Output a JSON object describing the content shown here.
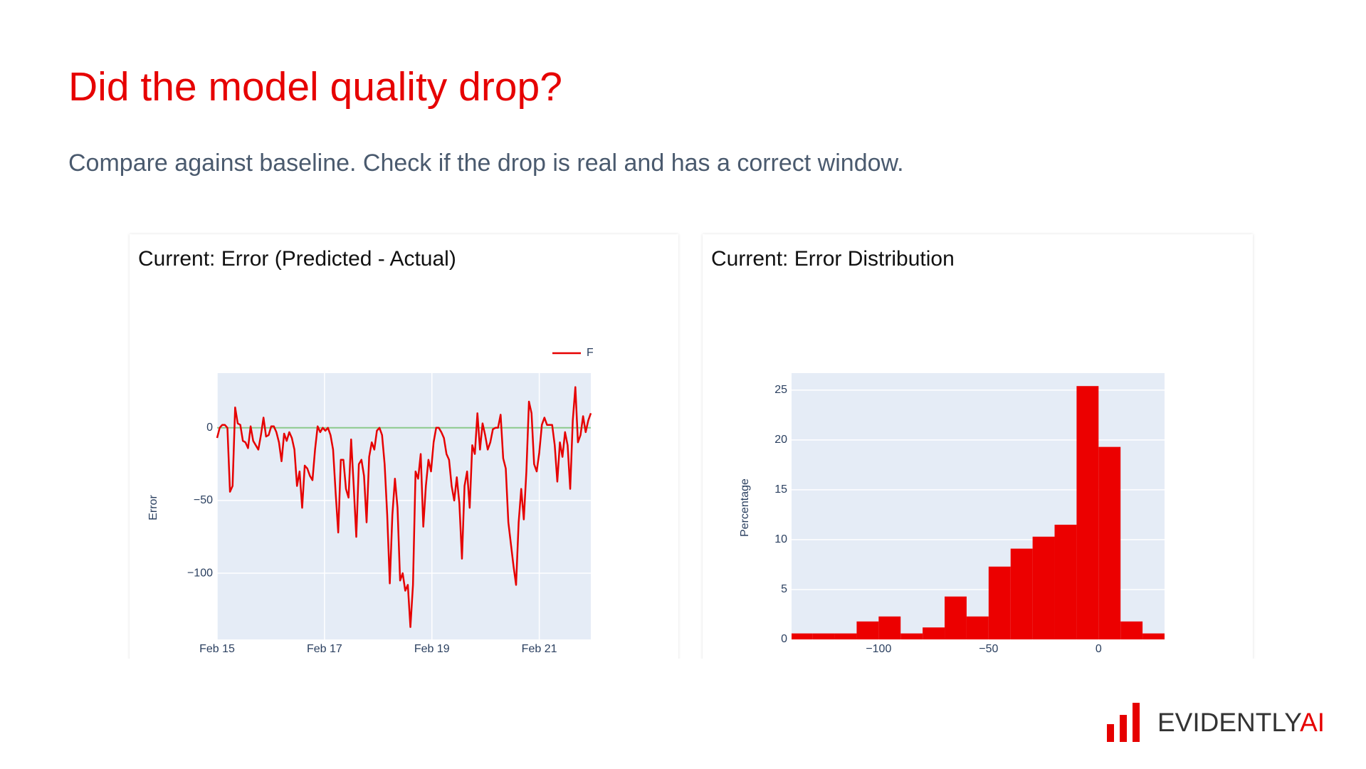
{
  "title": "Did the model quality drop?",
  "subtitle": "Compare against baseline. Check if the drop is real and has a correct window.",
  "logo": {
    "name": "EVIDENTLY",
    "suffix": "AI"
  },
  "chart_data": [
    {
      "type": "line",
      "title": "Current: Error (Predicted - Actual)",
      "y_label": "Error",
      "x": [
        15,
        15.048,
        15.096,
        15.144,
        15.192,
        15.24,
        15.288,
        15.336,
        15.384,
        15.432,
        15.48,
        15.528,
        15.576,
        15.624,
        15.672,
        15.72,
        15.768,
        15.816,
        15.864,
        15.912,
        15.96,
        16.008,
        16.056,
        16.104,
        16.152,
        16.2,
        16.248,
        16.296,
        16.344,
        16.392,
        16.44,
        16.488,
        16.536,
        16.584,
        16.632,
        16.68,
        16.728,
        16.776,
        16.824,
        16.872,
        16.92,
        16.968,
        17.016,
        17.064,
        17.112,
        17.16,
        17.208,
        17.256,
        17.304,
        17.352,
        17.4,
        17.448,
        17.496,
        17.544,
        17.592,
        17.64,
        17.688,
        17.736,
        17.784,
        17.832,
        17.88,
        17.928,
        17.976,
        18.024,
        18.072,
        18.12,
        18.168,
        18.216,
        18.264,
        18.312,
        18.36,
        18.408,
        18.456,
        18.504,
        18.552,
        18.6,
        18.648,
        18.696,
        18.744,
        18.792,
        18.84,
        18.888,
        18.936,
        18.984,
        19.032,
        19.08,
        19.128,
        19.176,
        19.224,
        19.272,
        19.32,
        19.368,
        19.416,
        19.464,
        19.512,
        19.56,
        19.608,
        19.656,
        19.704,
        19.752,
        19.8,
        19.848,
        19.896,
        19.944,
        19.992,
        20.04,
        20.088,
        20.136,
        20.184,
        20.232,
        20.28,
        20.328,
        20.376,
        20.424,
        20.472,
        20.52,
        20.568,
        20.616,
        20.664,
        20.712,
        20.76,
        20.808,
        20.856,
        20.904,
        20.952,
        21.0,
        21.048,
        21.096,
        21.144,
        21.192,
        21.24,
        21.288,
        21.336,
        21.384,
        21.432,
        21.48,
        21.528,
        21.576,
        21.624,
        21.672,
        21.72,
        21.768,
        21.816,
        21.864,
        21.912,
        21.96
      ],
      "series": [
        {
          "name": "F",
          "color": "#e60000",
          "values": [
            -7,
            0,
            2,
            2,
            0,
            -44,
            -40,
            14,
            3,
            2,
            -9,
            -10,
            -14,
            1,
            -9,
            -12,
            -15,
            -5,
            7,
            -6,
            -5,
            1,
            1,
            -3,
            -10,
            -23,
            -4,
            -9,
            -3,
            -7,
            -15,
            -40,
            -30,
            -55,
            -26,
            -28,
            -33,
            -36,
            -15,
            1,
            -3,
            0,
            -2,
            0,
            -5,
            -15,
            -45,
            -72,
            -22,
            -22,
            -42,
            -48,
            -8,
            -40,
            -75,
            -25,
            -22,
            -33,
            -65,
            -20,
            -10,
            -15,
            -2,
            0,
            -5,
            -25,
            -60,
            -107,
            -60,
            -35,
            -55,
            -105,
            -100,
            -112,
            -108,
            -137,
            -108,
            -30,
            -35,
            -18,
            -68,
            -40,
            -22,
            -30,
            -10,
            0,
            0,
            -3,
            -7,
            -18,
            -22,
            -40,
            -50,
            -34,
            -52,
            -90,
            -40,
            -30,
            -55,
            -12,
            -18,
            10,
            -15,
            3,
            -5,
            -15,
            -10,
            -1,
            0,
            0,
            9,
            -21,
            -28,
            -65,
            -80,
            -95,
            -108,
            -65,
            -42,
            -63,
            -30,
            18,
            10,
            -25,
            -30,
            -17,
            2,
            7,
            2,
            2,
            2,
            -12,
            -37,
            -10,
            -20,
            -3,
            -12,
            -42,
            5,
            28,
            -10,
            -5,
            8,
            -3,
            5,
            10
          ]
        }
      ],
      "hline": {
        "value": 0,
        "color": "#8cc98c"
      },
      "xlim": [
        15,
        21.96
      ],
      "xticks": [
        {
          "value": 15,
          "label": "Feb 15"
        },
        {
          "value": 17,
          "label": "Feb 17"
        },
        {
          "value": 19,
          "label": "Feb 19"
        },
        {
          "value": 21,
          "label": "Feb 21"
        }
      ],
      "ylim": [
        -145.5,
        37.6
      ],
      "yticks": [
        {
          "value": -100,
          "label": "−100"
        },
        {
          "value": -50,
          "label": "−50"
        },
        0
      ],
      "grid": true
    },
    {
      "type": "histogram",
      "title": "Current: Error Distribution",
      "y_label": "Percentage",
      "color": "#ec0000",
      "bins": [
        -140,
        -130,
        -120,
        -110,
        -100,
        -90,
        -80,
        -70,
        -60,
        -50,
        -40,
        -30,
        -20,
        -10,
        0,
        10,
        20,
        30
      ],
      "values": [
        0.6,
        0.6,
        0.6,
        1.8,
        2.3,
        0.6,
        1.2,
        4.3,
        2.3,
        7.3,
        9.1,
        10.3,
        11.5,
        25.4,
        19.3,
        1.8,
        0.6
      ],
      "xlim": [
        -139.6,
        30
      ],
      "xticks": [
        {
          "value": -100,
          "label": "−100"
        },
        {
          "value": -50,
          "label": "−50"
        },
        0
      ],
      "ylim": [
        0,
        26.7
      ],
      "yticks": [
        0,
        5,
        10,
        15,
        20,
        25
      ],
      "grid": true
    }
  ]
}
